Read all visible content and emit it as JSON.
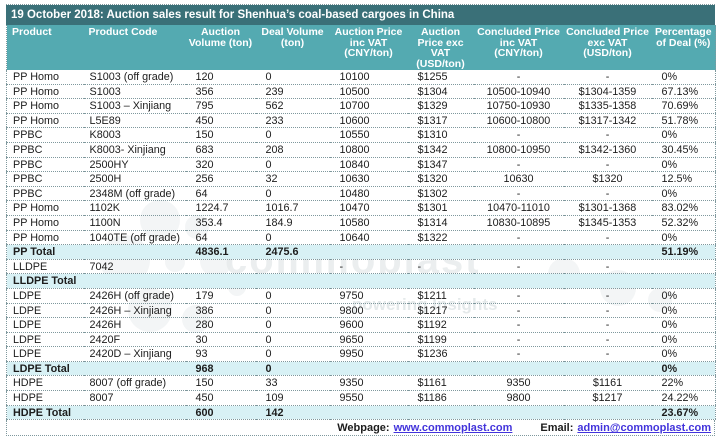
{
  "title": "19 October 2018: Auction sales result for Shenhua’s coal-based cargoes in China",
  "table": {
    "columns": [
      "Product",
      "Product Code",
      "Auction Volume (ton)",
      "Deal Volume (ton)",
      "Auction Price inc VAT (CNY/ton)",
      "Auction Price exc VAT (USD/ton)",
      "Concluded Price inc VAT (CNY/ton)",
      "Concluded Price exc VAT (USD/ton)",
      "Percentage of Deal (%)"
    ],
    "rows": [
      {
        "type": "data",
        "cells": [
          "PP Homo",
          "S1003 (off grade)",
          "120",
          "0",
          "10100",
          "$1255",
          "-",
          "-",
          "0%"
        ]
      },
      {
        "type": "data",
        "cells": [
          "PP Homo",
          "S1003",
          "356",
          "239",
          "10500",
          "$1304",
          "10500-10940",
          "$1304-1359",
          "67.13%"
        ]
      },
      {
        "type": "data",
        "cells": [
          "PP Homo",
          "S1003 – Xinjiang",
          "795",
          "562",
          "10700",
          "$1329",
          "10750-10930",
          "$1335-1358",
          "70.69%"
        ]
      },
      {
        "type": "data",
        "cells": [
          "PP Homo",
          "L5E89",
          "450",
          "233",
          "10600",
          "$1317",
          "10600-10800",
          "$1317-1342",
          "51.78%"
        ]
      },
      {
        "type": "data",
        "cells": [
          "PPBC",
          "K8003",
          "150",
          "0",
          "10550",
          "$1310",
          "-",
          "-",
          "0%"
        ]
      },
      {
        "type": "data",
        "cells": [
          "PPBC",
          "K8003- Xinjiang",
          "683",
          "208",
          "10800",
          "$1342",
          "10800-10950",
          "$1342-1360",
          "30.45%"
        ]
      },
      {
        "type": "data",
        "cells": [
          "PPBC",
          "2500HY",
          "320",
          "0",
          "10840",
          "$1347",
          "-",
          "-",
          "0%"
        ]
      },
      {
        "type": "data",
        "cells": [
          "PPBC",
          "2500H",
          "256",
          "32",
          "10630",
          "$1320",
          "10630",
          "$1320",
          "12.5%"
        ]
      },
      {
        "type": "data",
        "cells": [
          "PPBC",
          "2348M (off grade)",
          "64",
          "0",
          "10480",
          "$1302",
          "-",
          "-",
          "0%"
        ]
      },
      {
        "type": "data",
        "cells": [
          "PP Homo",
          "1102K",
          "1224.7",
          "1016.7",
          "10470",
          "$1301",
          "10470-11010",
          "$1301-1368",
          "83.02%"
        ]
      },
      {
        "type": "data",
        "cells": [
          "PP Homo",
          "1100N",
          "353.4",
          "184.9",
          "10580",
          "$1314",
          "10830-10895",
          "$1345-1353",
          "52.32%"
        ]
      },
      {
        "type": "data",
        "cells": [
          "PP Homo",
          "1040TE (off grade)",
          "64",
          "0",
          "10640",
          "$1322",
          "-",
          "-",
          "0%"
        ]
      },
      {
        "type": "total",
        "cells": [
          "PP Total",
          "",
          "4836.1",
          "2475.6",
          "",
          "",
          "",
          "",
          "51.19%"
        ]
      },
      {
        "type": "data",
        "cells": [
          "LLDPE",
          "7042",
          "",
          "",
          "-",
          "-",
          "-",
          "-",
          ""
        ]
      },
      {
        "type": "total",
        "cells": [
          "LLDPE Total",
          "",
          "",
          "",
          "",
          "",
          "",
          "",
          ""
        ]
      },
      {
        "type": "data",
        "cells": [
          "LDPE",
          "2426H (off grade)",
          "179",
          "0",
          "9750",
          "$1211",
          "-",
          "-",
          "0%"
        ]
      },
      {
        "type": "data",
        "cells": [
          "LDPE",
          "2426H – Xinjiang",
          "386",
          "0",
          "9800",
          "$1217",
          "-",
          "-",
          "0%"
        ]
      },
      {
        "type": "data",
        "cells": [
          "LDPE",
          "2426H",
          "280",
          "0",
          "9600",
          "$1192",
          "-",
          "-",
          "0%"
        ]
      },
      {
        "type": "data",
        "cells": [
          "LDPE",
          "2420F",
          "30",
          "0",
          "9650",
          "$1199",
          "-",
          "-",
          "0%"
        ]
      },
      {
        "type": "data",
        "cells": [
          "LDPE",
          "2420D – Xinjiang",
          "93",
          "0",
          "9950",
          "$1236",
          "-",
          "-",
          "0%"
        ]
      },
      {
        "type": "total",
        "cells": [
          "LDPE Total",
          "",
          "968",
          "0",
          "",
          "",
          "",
          "",
          "0%"
        ]
      },
      {
        "type": "data",
        "cells": [
          "HDPE",
          "8007 (off grade)",
          "150",
          "33",
          "9350",
          "$1161",
          "9350",
          "$1161",
          "22%"
        ]
      },
      {
        "type": "data",
        "cells": [
          "HDPE",
          "8007",
          "450",
          "109",
          "9550",
          "$1186",
          "9800",
          "$1217",
          "24.22%"
        ]
      },
      {
        "type": "total",
        "cells": [
          "HDPE Total",
          "",
          "600",
          "142",
          "",
          "",
          "",
          "",
          "23.67%"
        ]
      }
    ]
  },
  "footer": {
    "webpage_label": "Webpage:",
    "webpage_url": "www.commoplast.com",
    "email_label": "Email:",
    "email_address": "admin@commoplast.com"
  },
  "watermark": {
    "word": "commoplast",
    "tagline": "powering Insights"
  },
  "colors": {
    "title_bar": "#3a7078",
    "header": "#54aab1",
    "total_row": "#d8f1f5",
    "link": "#4233db",
    "border_dots": "#7f989d"
  }
}
